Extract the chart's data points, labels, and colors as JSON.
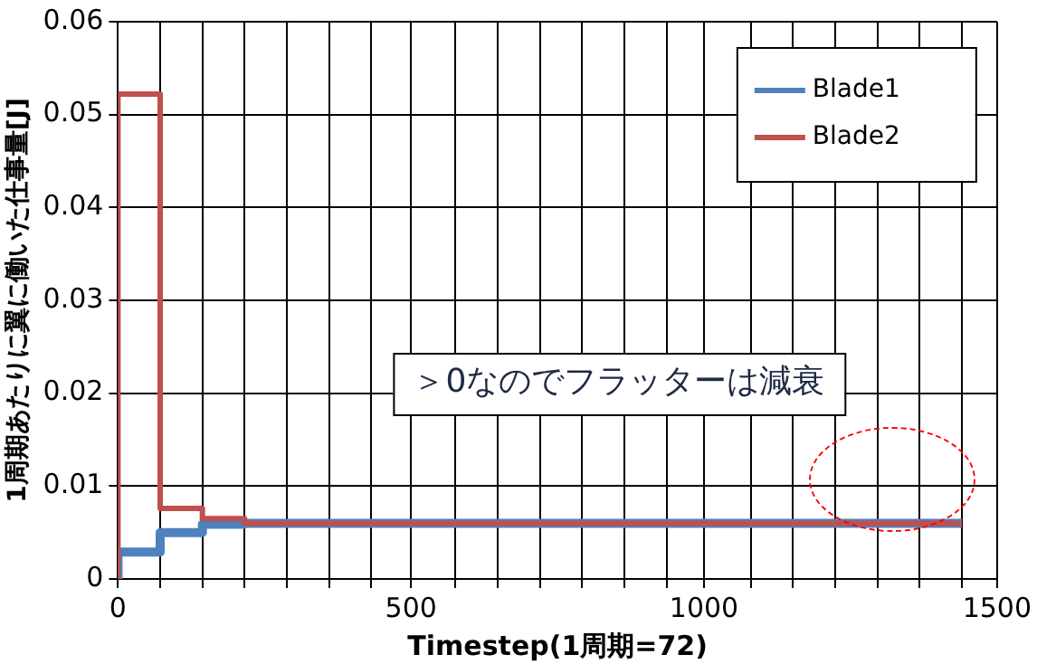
{
  "chart_data": {
    "type": "step",
    "xlabel": "Timestep(1周期=72)",
    "ylabel": "1周期あたりに翼に働いた仕事量[J]",
    "xlim": [
      0,
      1500
    ],
    "ylim": [
      0,
      0.06
    ],
    "xticks": [
      0,
      {
        "value": 72,
        "label": null
      },
      {
        "value": 144,
        "label": null
      },
      {
        "value": 216,
        "label": null
      },
      {
        "value": 288,
        "label": null
      },
      {
        "value": 360,
        "label": null
      },
      {
        "value": 432,
        "label": null
      },
      500,
      {
        "value": 576,
        "label": null
      },
      {
        "value": 648,
        "label": null
      },
      {
        "value": 720,
        "label": null
      },
      {
        "value": 792,
        "label": null
      },
      {
        "value": 864,
        "label": null
      },
      {
        "value": 936,
        "label": null
      },
      1000,
      {
        "value": 1080,
        "label": null
      },
      {
        "value": 1152,
        "label": null
      },
      {
        "value": 1224,
        "label": null
      },
      {
        "value": 1296,
        "label": null
      },
      {
        "value": 1368,
        "label": null
      },
      {
        "value": 1440,
        "label": null
      },
      1500
    ],
    "yticks": [
      0,
      0.01,
      0.02,
      0.03,
      0.04,
      0.05,
      0.06
    ],
    "grid": true,
    "legend": "top right",
    "marker": "none",
    "line_style": "solid",
    "series": [
      {
        "name": "Blade1",
        "color": "#4f81bd",
        "x": [
          0,
          72,
          144,
          216,
          288,
          1440
        ],
        "values": [
          0,
          0.0029,
          0.005,
          0.0059,
          0.006,
          0.006
        ]
      },
      {
        "name": "Blade2",
        "color": "#c0504d",
        "x": [
          0,
          72,
          144,
          216,
          288,
          1440
        ],
        "values": [
          0,
          0.0522,
          0.0076,
          0.0065,
          0.006,
          0.006
        ]
      }
    ],
    "annotations": [
      "＞0なのでフラッターは減衰"
    ]
  }
}
